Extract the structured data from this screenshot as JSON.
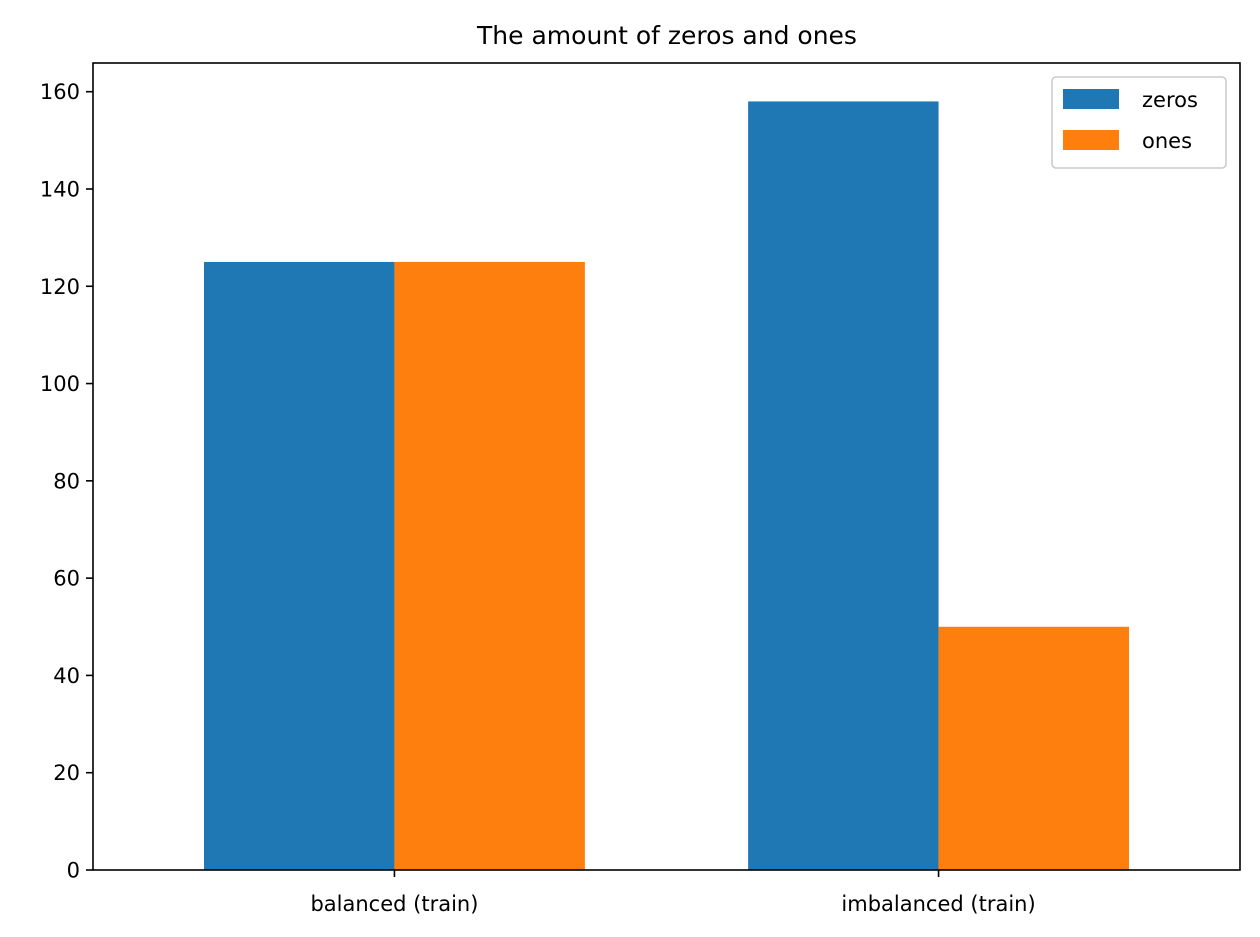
{
  "chart_data": {
    "type": "bar",
    "title": "The amount of zeros and ones",
    "xlabel": "",
    "ylabel": "",
    "categories": [
      "balanced (train)",
      "imbalanced (train)"
    ],
    "series": [
      {
        "name": "zeros",
        "values": [
          125,
          158
        ],
        "color": "#1f77b4"
      },
      {
        "name": "ones",
        "values": [
          125,
          50
        ],
        "color": "#ff7f0e"
      }
    ],
    "ylim": [
      0,
      165.9
    ],
    "yticks": [
      0,
      20,
      40,
      60,
      80,
      100,
      120,
      140,
      160
    ],
    "grid": false,
    "legend_position": "top-right"
  }
}
